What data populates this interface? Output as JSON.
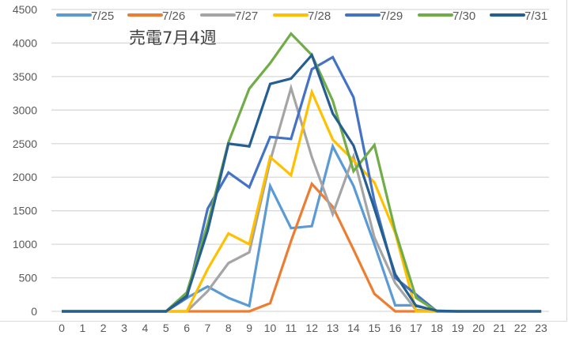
{
  "chart_data": {
    "type": "line",
    "title": "売電7月4週",
    "xlabel": "",
    "ylabel": "",
    "ylim": [
      0,
      4500
    ],
    "yticks": [
      0,
      500,
      1000,
      1500,
      2000,
      2500,
      3000,
      3500,
      4000,
      4500
    ],
    "grid": true,
    "legend_position": "top",
    "x": [
      0,
      1,
      2,
      3,
      4,
      5,
      6,
      7,
      8,
      9,
      10,
      11,
      12,
      13,
      14,
      15,
      16,
      17,
      18,
      19,
      20,
      21,
      22,
      23
    ],
    "series": [
      {
        "name": "7/25",
        "color": "#5b9bd5",
        "values": [
          0,
          0,
          0,
          0,
          0,
          0,
          200,
          370,
          200,
          80,
          1870,
          1240,
          1270,
          2460,
          1870,
          1000,
          90,
          90,
          0,
          0,
          0,
          0,
          0,
          0
        ]
      },
      {
        "name": "7/26",
        "color": "#ed7d31",
        "values": [
          0,
          0,
          0,
          0,
          0,
          0,
          0,
          0,
          0,
          0,
          120,
          1050,
          1900,
          1560,
          920,
          260,
          0,
          0,
          0,
          0,
          0,
          0,
          0,
          0
        ]
      },
      {
        "name": "7/27",
        "color": "#a5a5a5",
        "values": [
          0,
          0,
          0,
          0,
          0,
          0,
          0,
          300,
          720,
          880,
          2240,
          3330,
          2300,
          1450,
          2310,
          1100,
          420,
          20,
          0,
          0,
          0,
          0,
          0,
          0
        ]
      },
      {
        "name": "7/28",
        "color": "#ffc000",
        "values": [
          0,
          0,
          0,
          0,
          0,
          0,
          0,
          630,
          1160,
          1000,
          2300,
          2030,
          3270,
          2560,
          2250,
          1920,
          1170,
          0,
          0,
          0,
          0,
          0,
          0,
          0
        ]
      },
      {
        "name": "7/29",
        "color": "#4472c4",
        "values": [
          0,
          0,
          0,
          0,
          0,
          0,
          200,
          1530,
          2070,
          1850,
          2600,
          2570,
          3610,
          3790,
          3190,
          1640,
          500,
          250,
          0,
          0,
          0,
          0,
          0,
          0
        ]
      },
      {
        "name": "7/30",
        "color": "#70ad47",
        "values": [
          0,
          0,
          0,
          0,
          0,
          0,
          280,
          1300,
          2520,
          3320,
          3700,
          4140,
          3820,
          3140,
          2090,
          2480,
          1200,
          200,
          0,
          0,
          0,
          0,
          0,
          0
        ]
      },
      {
        "name": "7/31",
        "color": "#255e91",
        "values": [
          0,
          0,
          0,
          0,
          0,
          0,
          230,
          1200,
          2500,
          2460,
          3390,
          3470,
          3820,
          2950,
          2470,
          1530,
          550,
          80,
          10,
          0,
          0,
          0,
          0,
          0
        ]
      }
    ]
  }
}
